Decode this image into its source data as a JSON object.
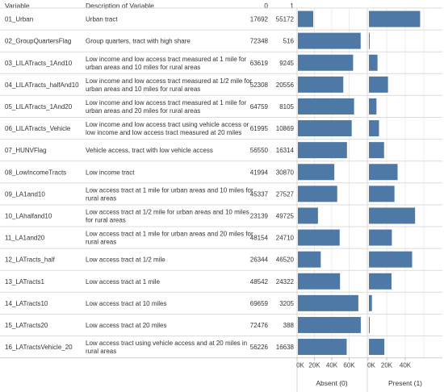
{
  "header": {
    "variable": "Variable",
    "description": "Description of Variable",
    "col0": "0",
    "col1": "1"
  },
  "chart_data": {
    "type": "bar",
    "panels": [
      "Absent (0)",
      "Present (1)"
    ],
    "series": [
      {
        "name": "0",
        "color": "#4e79a7"
      },
      {
        "name": "1",
        "color": "#4e79a7"
      }
    ],
    "xlim": [
      0,
      80000
    ],
    "x_ticks": [
      0,
      20000,
      40000,
      60000
    ],
    "x_tick_labels_absent": [
      "0K",
      "20K",
      "40K",
      "60K"
    ],
    "x_tick_labels_present": [
      "0K",
      "20K",
      "40K"
    ],
    "grid": true,
    "rows": [
      {
        "variable": "01_Urban",
        "description": [
          "Urban tract"
        ],
        "v0": 17692,
        "v1": 55172
      },
      {
        "variable": "02_GroupQuartersFlag",
        "description": [
          "Group quarters, tract with high share"
        ],
        "v0": 72348,
        "v1": 516
      },
      {
        "variable": "03_LILATracts_1And10",
        "description": [
          "Low income and low access tract measured at 1 mile for",
          "urban areas and 10 miles for rural areas"
        ],
        "v0": 63619,
        "v1": 9245
      },
      {
        "variable": "04_LILATracts_halfAnd10",
        "description": [
          "Low income and low access tract measured at 1/2 mile for",
          "urban areas and 10 miles for rural areas"
        ],
        "v0": 52308,
        "v1": 20556
      },
      {
        "variable": "05_LILATracts_1And20",
        "description": [
          "Low income and low access tract measured at 1 mile for",
          "urban areas and 20 miles for rural areas"
        ],
        "v0": 64759,
        "v1": 8105
      },
      {
        "variable": "06_LILATracts_Vehicle",
        "description": [
          "Low income and low access tract using vehicle access or",
          "low income and low access tract measured at 20 miles"
        ],
        "v0": 61995,
        "v1": 10869
      },
      {
        "variable": "07_HUNVFlag",
        "description": [
          "Vehicle access, tract with low vehicle access"
        ],
        "v0": 56550,
        "v1": 16314
      },
      {
        "variable": "08_LowIncomeTracts",
        "description": [
          "Low income tract"
        ],
        "v0": 41994,
        "v1": 30870
      },
      {
        "variable": "09_LA1and10",
        "description": [
          "Low access tract at 1 mile for urban areas and 10 miles for",
          "rural areas"
        ],
        "v0": 45337,
        "v1": 27527
      },
      {
        "variable": "10_LAhalfand10",
        "description": [
          "Low access tract at 1/2 mile for urban areas and 10 miles",
          "for rural areas"
        ],
        "v0": 23139,
        "v1": 49725
      },
      {
        "variable": "11_LA1and20",
        "description": [
          "Low access tract at 1 mile for urban areas and 20 miles for",
          "rural areas"
        ],
        "v0": 48154,
        "v1": 24710
      },
      {
        "variable": "12_LATracts_half",
        "description": [
          "Low access tract at 1/2 mile"
        ],
        "v0": 26344,
        "v1": 46520
      },
      {
        "variable": "13_LATracts1",
        "description": [
          "Low access tract at 1 mile"
        ],
        "v0": 48542,
        "v1": 24322
      },
      {
        "variable": "14_LATracts10",
        "description": [
          "Low access tract at 10 miles"
        ],
        "v0": 69659,
        "v1": 3205
      },
      {
        "variable": "15_LATracts20",
        "description": [
          "Low access tract at 20 miles"
        ],
        "v0": 72476,
        "v1": 388
      },
      {
        "variable": "16_LATractsVehicle_20",
        "description": [
          "Low access tract using vehicle access and at 20 miles  in",
          "rural areas"
        ],
        "v0": 56226,
        "v1": 16638
      }
    ]
  }
}
